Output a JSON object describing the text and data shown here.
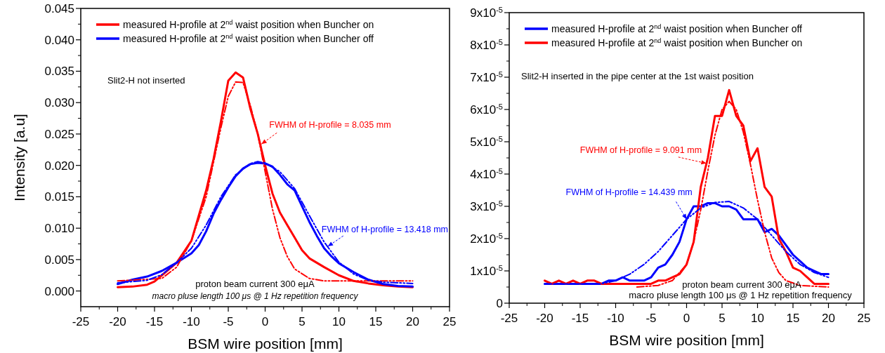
{
  "chart_data": [
    {
      "type": "line",
      "ylabel": "Intensity [a.u]",
      "xlabel": "BSM wire position [mm]",
      "xlim": [
        -25,
        25
      ],
      "xticks": [
        -25,
        -20,
        -15,
        -10,
        -5,
        0,
        5,
        10,
        15,
        20,
        25
      ],
      "ylim": [
        -0.0025,
        0.045
      ],
      "yticks": [
        {
          "value": 0,
          "label": "0.000"
        },
        0.005,
        {
          "value": 0.01,
          "label": "0.010"
        },
        0.015,
        {
          "value": 0.02,
          "label": "0.020"
        },
        0.025,
        {
          "value": 0.03,
          "label": "0.030"
        },
        0.035,
        {
          "value": 0.04,
          "label": "0.040"
        },
        0.045
      ],
      "legend": "top left",
      "annotations": [
        "Slit2-H not inserted",
        "proton beam current 300 eμA",
        "macro pluse length 100 μs @ 1 Hz repetition frequency",
        {
          "text": "FWHM of H-profile = 8.035 mm",
          "x": -0.5,
          "y": 0.0234
        },
        {
          "text": "FWHM of H-profile = 13.418 mm",
          "x": 8.5,
          "y": 0.0071
        }
      ],
      "series": [
        {
          "name": "measured H-profile at 2$^{nd}$ waist position when Buncher on",
          "color": "#ff0000",
          "line_style": "solid",
          "x": [
            -20,
            -18,
            -16,
            -15,
            -14,
            -12,
            -10,
            -9,
            -8,
            -7,
            -6,
            -5,
            -4,
            -3,
            -2,
            -1,
            0,
            1,
            2,
            3,
            4,
            5,
            6,
            8,
            10,
            12,
            14,
            16,
            18,
            20
          ],
          "values": [
            0.0006,
            0.0007,
            0.001,
            0.0015,
            0.0025,
            0.0045,
            0.008,
            0.012,
            0.016,
            0.021,
            0.027,
            0.0335,
            0.0348,
            0.034,
            0.029,
            0.025,
            0.02,
            0.0155,
            0.0125,
            0.0105,
            0.0085,
            0.0065,
            0.0052,
            0.0038,
            0.0025,
            0.0016,
            0.0012,
            0.0009,
            0.0007,
            0.0006
          ]
        },
        {
          "name": "measured H-profile at 2$^{nd}$ waist position when Buncher off",
          "color": "#0000ff",
          "line_style": "solid",
          "x": [
            -20,
            -18,
            -16,
            -14,
            -12,
            -10,
            -9,
            -8,
            -7,
            -6,
            -5,
            -4,
            -3,
            -2,
            -1,
            0,
            1,
            2,
            3,
            4,
            5,
            6,
            7,
            8,
            9,
            10,
            12,
            14,
            16,
            18,
            20
          ],
          "values": [
            0.0011,
            0.0018,
            0.0023,
            0.0032,
            0.0045,
            0.006,
            0.0073,
            0.0095,
            0.0123,
            0.0145,
            0.0165,
            0.0183,
            0.0195,
            0.0202,
            0.0204,
            0.0203,
            0.0198,
            0.0185,
            0.017,
            0.016,
            0.0135,
            0.011,
            0.0088,
            0.0068,
            0.0055,
            0.0044,
            0.003,
            0.0018,
            0.0011,
            0.0008,
            0.0007
          ]
        },
        {
          "color": "#ff0000",
          "line_style": "dashed",
          "x": [
            -20,
            -14,
            -12,
            -10,
            -8,
            -6,
            -5,
            -4,
            -3,
            -2,
            -1,
            0,
            1,
            2,
            3,
            4,
            6,
            8,
            20
          ],
          "values": [
            0.0016,
            0.002,
            0.0038,
            0.008,
            0.015,
            0.026,
            0.031,
            0.0333,
            0.0332,
            0.0295,
            0.025,
            0.019,
            0.013,
            0.0085,
            0.0055,
            0.0035,
            0.002,
            0.0016,
            0.0016
          ]
        },
        {
          "color": "#0000ff",
          "line_style": "dashed",
          "x": [
            -20,
            -16,
            -14,
            -12,
            -10,
            -8,
            -6,
            -4,
            -2,
            -1,
            0,
            2,
            4,
            6,
            8,
            10,
            12,
            14,
            16,
            20
          ],
          "values": [
            0.0013,
            0.0017,
            0.0026,
            0.0045,
            0.0068,
            0.0105,
            0.015,
            0.0185,
            0.0203,
            0.0206,
            0.0204,
            0.019,
            0.0163,
            0.012,
            0.0078,
            0.0046,
            0.0027,
            0.0017,
            0.0014,
            0.0012
          ]
        }
      ]
    },
    {
      "type": "line",
      "xlabel": "BSM wire position [mm]",
      "xlim": [
        -25,
        25
      ],
      "xticks": [
        -25,
        -20,
        -15,
        -10,
        -5,
        0,
        5,
        10,
        15,
        20,
        25
      ],
      "ylim": [
        0,
        9e-05
      ],
      "yticks": [
        0,
        {
          "value": 1e-05,
          "label": "1x10$^{-5}$"
        },
        {
          "value": 2e-05,
          "label": "2x10$^{-5}$"
        },
        {
          "value": 3e-05,
          "label": "3x10$^{-5}$"
        },
        {
          "value": 4e-05,
          "label": "4x10$^{-5}$"
        },
        {
          "value": 5e-05,
          "label": "5x10$^{-5}$"
        },
        {
          "value": 6e-05,
          "label": "6x10$^{-5}$"
        },
        {
          "value": 7e-05,
          "label": "7x10$^{-5}$"
        },
        {
          "value": 8e-05,
          "label": "8x10$^{-5}$"
        },
        {
          "value": 9e-05,
          "label": "9x10$^{-5}$"
        }
      ],
      "legend": "top left",
      "annotations": [
        "Slit2-H inserted in the pipe center at the 1st waist position",
        "proton beam current 300 eμA",
        "macro pluse length 100 μs @ 1 Hz repetition frequency",
        {
          "text": "FWHM of H-profile = 9.091 mm",
          "x": 2.8,
          "y": 4.33e-05
        },
        {
          "text": "FWHM of H-profile = 14.439 mm",
          "x": 0,
          "y": 2.6e-05
        }
      ],
      "series": [
        {
          "name": "measured H-profile at 2$^{nd}$ waist position when Buncher off",
          "color": "#0000ff",
          "line_style": "solid",
          "x": [
            -20,
            -19,
            -18,
            -17,
            -16,
            -15,
            -14,
            -13,
            -12,
            -11,
            -10,
            -9,
            -8,
            -7,
            -6,
            -5,
            -4,
            -3,
            -2,
            -1,
            0,
            1,
            2,
            3,
            4,
            5,
            6,
            7,
            8,
            9,
            10,
            11,
            12,
            13,
            14,
            15,
            16,
            17,
            18,
            19,
            20
          ],
          "values": [
            6e-06,
            6e-06,
            6e-06,
            6e-06,
            6e-06,
            6e-06,
            6e-06,
            6e-06,
            6e-06,
            7e-06,
            7e-06,
            8e-06,
            7e-06,
            7e-06,
            7e-06,
            8e-06,
            1.1e-05,
            1.2e-05,
            1.5e-05,
            1.9e-05,
            2.6e-05,
            3e-05,
            3e-05,
            3.1e-05,
            3.1e-05,
            3e-05,
            3e-05,
            2.9e-05,
            2.6e-05,
            2.6e-05,
            2.6e-05,
            2.2e-05,
            2.3e-05,
            2.1e-05,
            1.8e-05,
            1.5e-05,
            1.3e-05,
            1.1e-05,
            1e-05,
            9e-06,
            9e-06
          ]
        },
        {
          "name": "measured H-profile at 2$^{nd}$ waist position when Buncher on",
          "color": "#ff0000",
          "line_style": "solid",
          "x": [
            -20,
            -19,
            -18,
            -17,
            -16,
            -15,
            -14,
            -13,
            -12,
            -11,
            -10,
            -9,
            -8,
            -7,
            -6,
            -5,
            -4,
            -3,
            -2,
            -1,
            0,
            1,
            2,
            3,
            4,
            5,
            6,
            7,
            8,
            9,
            10,
            11,
            12,
            13,
            14,
            15,
            16,
            17,
            18,
            19,
            20
          ],
          "values": [
            7e-06,
            6e-06,
            7e-06,
            6e-06,
            7e-06,
            6e-06,
            7e-06,
            7e-06,
            6e-06,
            6e-06,
            6e-06,
            6e-06,
            6e-06,
            6e-06,
            6e-06,
            6e-06,
            7e-06,
            7e-06,
            8e-06,
            9e-06,
            1.2e-05,
            1.9e-05,
            3.6e-05,
            4.5e-05,
            5.8e-05,
            5.8e-05,
            6.6e-05,
            5.8e-05,
            5.5e-05,
            4.4e-05,
            4.8e-05,
            3.6e-05,
            3.3e-05,
            2e-05,
            1.6e-05,
            1.1e-05,
            1e-05,
            8e-06,
            6e-06,
            6e-06,
            6e-06
          ]
        },
        {
          "color": "#0000ff",
          "line_style": "dashed",
          "x": [
            -20,
            -12,
            -10,
            -8,
            -6,
            -4,
            -2,
            0,
            2,
            4,
            6,
            8,
            10,
            12,
            14,
            16,
            18,
            20
          ],
          "values": [
            6e-06,
            6e-06,
            7e-06,
            9e-06,
            1.2e-05,
            1.6e-05,
            2.1e-05,
            2.6e-05,
            2.95e-05,
            3.12e-05,
            3.15e-05,
            2.95e-05,
            2.6e-05,
            2.1e-05,
            1.6e-05,
            1.2e-05,
            9.5e-06,
            8e-06
          ]
        },
        {
          "color": "#ff0000",
          "line_style": "dashed",
          "x": [
            -7,
            -4,
            -2,
            0,
            1,
            2,
            3,
            4,
            5,
            6,
            7,
            8,
            9,
            10,
            11,
            12,
            13,
            14,
            16,
            20
          ],
          "values": [
            5e-06,
            5.5e-06,
            7e-06,
            1.2e-05,
            1.9e-05,
            2.9e-05,
            4.1e-05,
            5.2e-05,
            6e-05,
            6.25e-05,
            6e-05,
            5.3e-05,
            4.3e-05,
            3.2e-05,
            2.2e-05,
            1.4e-05,
            9.5e-06,
            7e-06,
            5.5e-06,
            5e-06
          ]
        }
      ]
    }
  ]
}
